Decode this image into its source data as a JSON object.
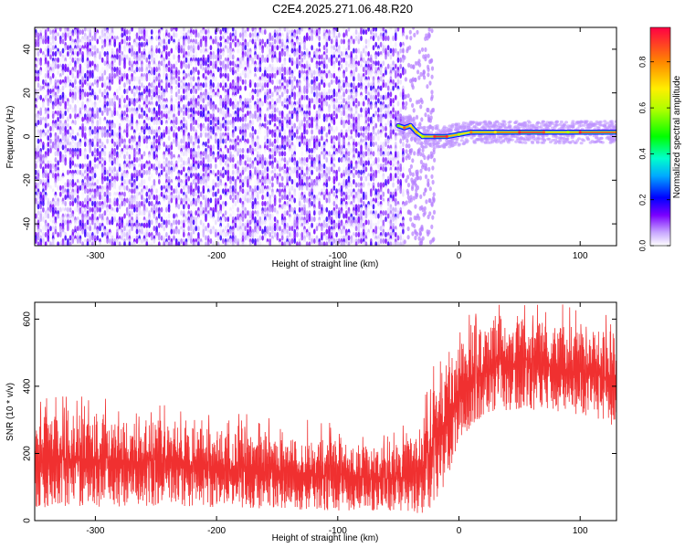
{
  "title": "C2E4.2025.271.06.48.R20",
  "chart_data": [
    {
      "type": "heatmap",
      "title": "C2E4.2025.271.06.48.R20",
      "xlabel": "Height of straight line (km)",
      "ylabel": "Frequency (Hz)",
      "xlim": [
        -350,
        130
      ],
      "ylim": [
        -50,
        50
      ],
      "xticks": [
        -300,
        -200,
        -100,
        0,
        100
      ],
      "yticks": [
        -40,
        -20,
        0,
        20,
        40
      ],
      "colorbar": {
        "label": "Normalized spectral amplitude",
        "range": [
          0,
          0.95
        ],
        "ticks": [
          0.0,
          0.2,
          0.4,
          0.6,
          0.8
        ],
        "colormap": "rainbow"
      },
      "noise_region": {
        "x_range": [
          -350,
          -45
        ],
        "freq_range": [
          -50,
          50
        ],
        "amplitude_range": [
          0.0,
          0.15
        ]
      },
      "signal_band": [
        {
          "x": -50,
          "freq": 5,
          "amplitude": 0.55
        },
        {
          "x": -45,
          "freq": 4,
          "amplitude": 0.85
        },
        {
          "x": -40,
          "freq": 5,
          "amplitude": 0.7
        },
        {
          "x": -35,
          "freq": 2,
          "amplitude": 0.75
        },
        {
          "x": -30,
          "freq": 0,
          "amplitude": 0.6
        },
        {
          "x": -20,
          "freq": 0,
          "amplitude": 0.9
        },
        {
          "x": -10,
          "freq": 0,
          "amplitude": 0.9
        },
        {
          "x": 0,
          "freq": 1,
          "amplitude": 0.6
        },
        {
          "x": 10,
          "freq": 2,
          "amplitude": 0.8
        },
        {
          "x": 30,
          "freq": 2,
          "amplitude": 0.7
        },
        {
          "x": 50,
          "freq": 2,
          "amplitude": 0.9
        },
        {
          "x": 70,
          "freq": 2,
          "amplitude": 0.85
        },
        {
          "x": 90,
          "freq": 2,
          "amplitude": 0.6
        },
        {
          "x": 100,
          "freq": 2,
          "amplitude": 0.9
        },
        {
          "x": 130,
          "freq": 2,
          "amplitude": 0.8
        }
      ]
    },
    {
      "type": "line",
      "xlabel": "Height of straight line (km)",
      "ylabel": "SNR (10 * v/v)",
      "xlim": [
        -350,
        130
      ],
      "ylim": [
        0,
        650
      ],
      "xticks": [
        -300,
        -200,
        -100,
        0,
        100
      ],
      "yticks": [
        0,
        200,
        400,
        600
      ],
      "color": "#f03030",
      "envelope": {
        "x": [
          -350,
          -300,
          -250,
          -200,
          -150,
          -100,
          -60,
          -40,
          -30,
          -20,
          -10,
          0,
          10,
          30,
          50,
          80,
          100,
          130
        ],
        "low": [
          40,
          40,
          45,
          40,
          35,
          30,
          30,
          25,
          20,
          40,
          120,
          230,
          280,
          320,
          330,
          320,
          310,
          280
        ],
        "high": [
          310,
          320,
          300,
          270,
          250,
          230,
          220,
          240,
          300,
          420,
          480,
          520,
          560,
          600,
          610,
          590,
          570,
          560
        ]
      }
    }
  ]
}
